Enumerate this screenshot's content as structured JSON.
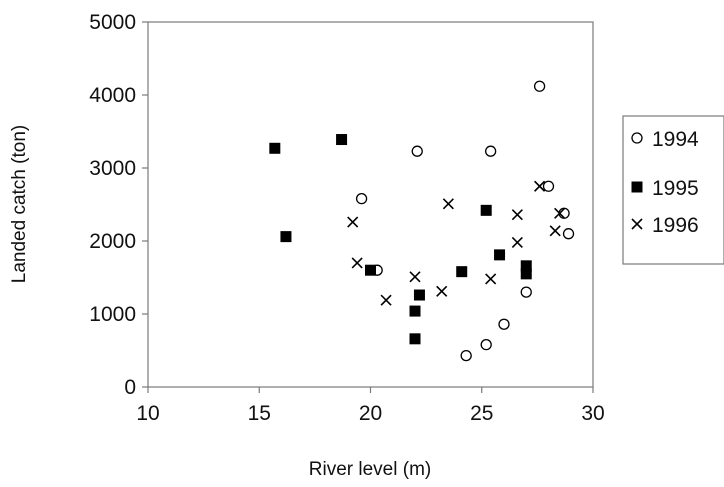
{
  "chart_data": {
    "type": "scatter",
    "xlabel": "River level (m)",
    "ylabel": "Landed catch (ton)",
    "xlim": [
      10,
      30
    ],
    "ylim": [
      0,
      5000
    ],
    "x_ticks": [
      10,
      15,
      20,
      25,
      30
    ],
    "y_ticks": [
      0,
      1000,
      2000,
      3000,
      4000,
      5000
    ],
    "grid": false,
    "legend_position": "right",
    "series": [
      {
        "name": "1994",
        "marker": "circle",
        "color": "#000000",
        "points": [
          [
            22.1,
            3230
          ],
          [
            25.4,
            3230
          ],
          [
            19.6,
            2580
          ],
          [
            20.3,
            1600
          ],
          [
            27.6,
            4120
          ],
          [
            28.0,
            2750
          ],
          [
            28.7,
            2380
          ],
          [
            28.9,
            2100
          ],
          [
            27.0,
            1300
          ],
          [
            26.0,
            860
          ],
          [
            25.2,
            580
          ],
          [
            24.3,
            430
          ]
        ]
      },
      {
        "name": "1995",
        "marker": "square",
        "color": "#000000",
        "points": [
          [
            15.7,
            3270
          ],
          [
            18.7,
            3390
          ],
          [
            16.2,
            2060
          ],
          [
            20.0,
            1600
          ],
          [
            22.0,
            1040
          ],
          [
            22.2,
            1260
          ],
          [
            22.0,
            660
          ],
          [
            24.1,
            1580
          ],
          [
            25.2,
            2420
          ],
          [
            25.8,
            1810
          ],
          [
            27.0,
            1550
          ],
          [
            27.0,
            1660
          ]
        ]
      },
      {
        "name": "1996",
        "marker": "x",
        "color": "#000000",
        "points": [
          [
            19.2,
            2260
          ],
          [
            19.4,
            1700
          ],
          [
            20.7,
            1190
          ],
          [
            22.0,
            1510
          ],
          [
            23.5,
            2510
          ],
          [
            23.2,
            1310
          ],
          [
            25.4,
            1480
          ],
          [
            26.6,
            2360
          ],
          [
            26.6,
            1980
          ],
          [
            27.6,
            2750
          ],
          [
            28.3,
            2140
          ],
          [
            28.5,
            2380
          ]
        ]
      }
    ]
  }
}
